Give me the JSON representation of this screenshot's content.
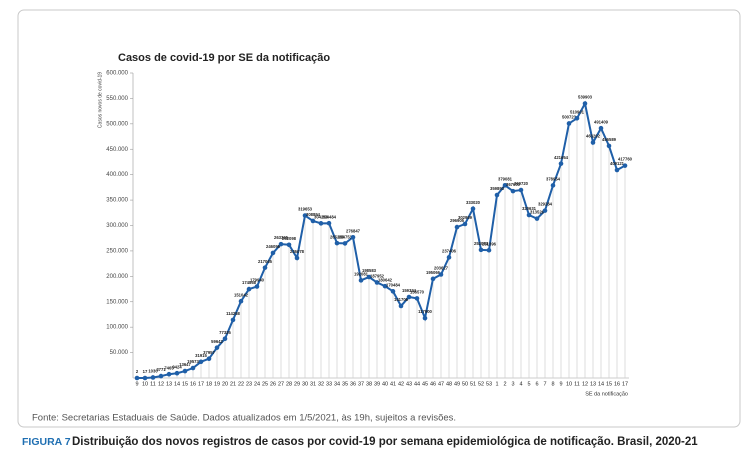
{
  "chart_data": {
    "type": "line",
    "title": "Casos de covid-19 por SE da notificação",
    "y_label": "Casos novos de covid-19",
    "x_label": "SE da notificação",
    "source": "Fonte: Secretarias Estaduais de Saúde. Dados atualizados em 1/5/2021, às 19h, sujeitos a revisões.",
    "figure_label": "FIGURA 7",
    "caption": "Distribuição dos novos registros de casos por covid-19 por semana epidemiológica de notificação. Brasil, 2020-21",
    "categories": [
      "9",
      "10",
      "11",
      "12",
      "13",
      "14",
      "15",
      "16",
      "17",
      "18",
      "19",
      "20",
      "21",
      "22",
      "23",
      "24",
      "25",
      "26",
      "27",
      "28",
      "29",
      "30",
      "31",
      "32",
      "33",
      "34",
      "35",
      "36",
      "37",
      "38",
      "39",
      "40",
      "41",
      "42",
      "43",
      "44",
      "45",
      "46",
      "47",
      "48",
      "49",
      "50",
      "51",
      "52",
      "53",
      "1",
      "2",
      "3",
      "4",
      "5",
      "6",
      "7",
      "8",
      "9",
      "10",
      "11",
      "12",
      "13",
      "14",
      "15",
      "16",
      "17"
    ],
    "series": [
      {
        "name": "Casos",
        "color": "#1f5fa8",
        "values": [
          2,
          17,
          1030,
          3771,
          7465,
          9424,
          13647,
          19573,
          31915,
          37957,
          59642,
          77335,
          114258,
          151042,
          174868,
          179940,
          217065,
          246098,
          263365,
          262098,
          236078,
          319653,
          308894,
          304263,
          304484,
          265268,
          264751,
          276847,
          192081,
          198583,
          187952,
          180642,
          170484,
          141708,
          159334,
          156570,
          117900,
          195066,
          203627,
          237406,
          296905,
          302959,
          333020,
          252064,
          251396,
          359893,
          379081,
          367600,
          369720,
          320631,
          313526,
          329284,
          378954,
          421654,
          500723,
          510901,
          539903,
          463292,
          491409,
          456589,
          409121,
          417760
        ]
      }
    ],
    "ylim": [
      0,
      600000
    ],
    "yticks": [
      {
        "value": 50000,
        "label": "50.000"
      },
      {
        "value": 100000,
        "label": "100.000"
      },
      {
        "value": 150000,
        "label": "150.000"
      },
      {
        "value": 200000,
        "label": "200.000"
      },
      {
        "value": 250000,
        "label": "250.000"
      },
      {
        "value": 300000,
        "label": "300.000"
      },
      {
        "value": 350000,
        "label": "350.000"
      },
      {
        "value": 400000,
        "label": "400.000"
      },
      {
        "value": 450000,
        "label": "450.000"
      },
      {
        "value": 500000,
        "label": "500.000"
      },
      {
        "value": 550000,
        "label": "550.000"
      },
      {
        "value": 600000,
        "label": "600.000"
      }
    ]
  }
}
